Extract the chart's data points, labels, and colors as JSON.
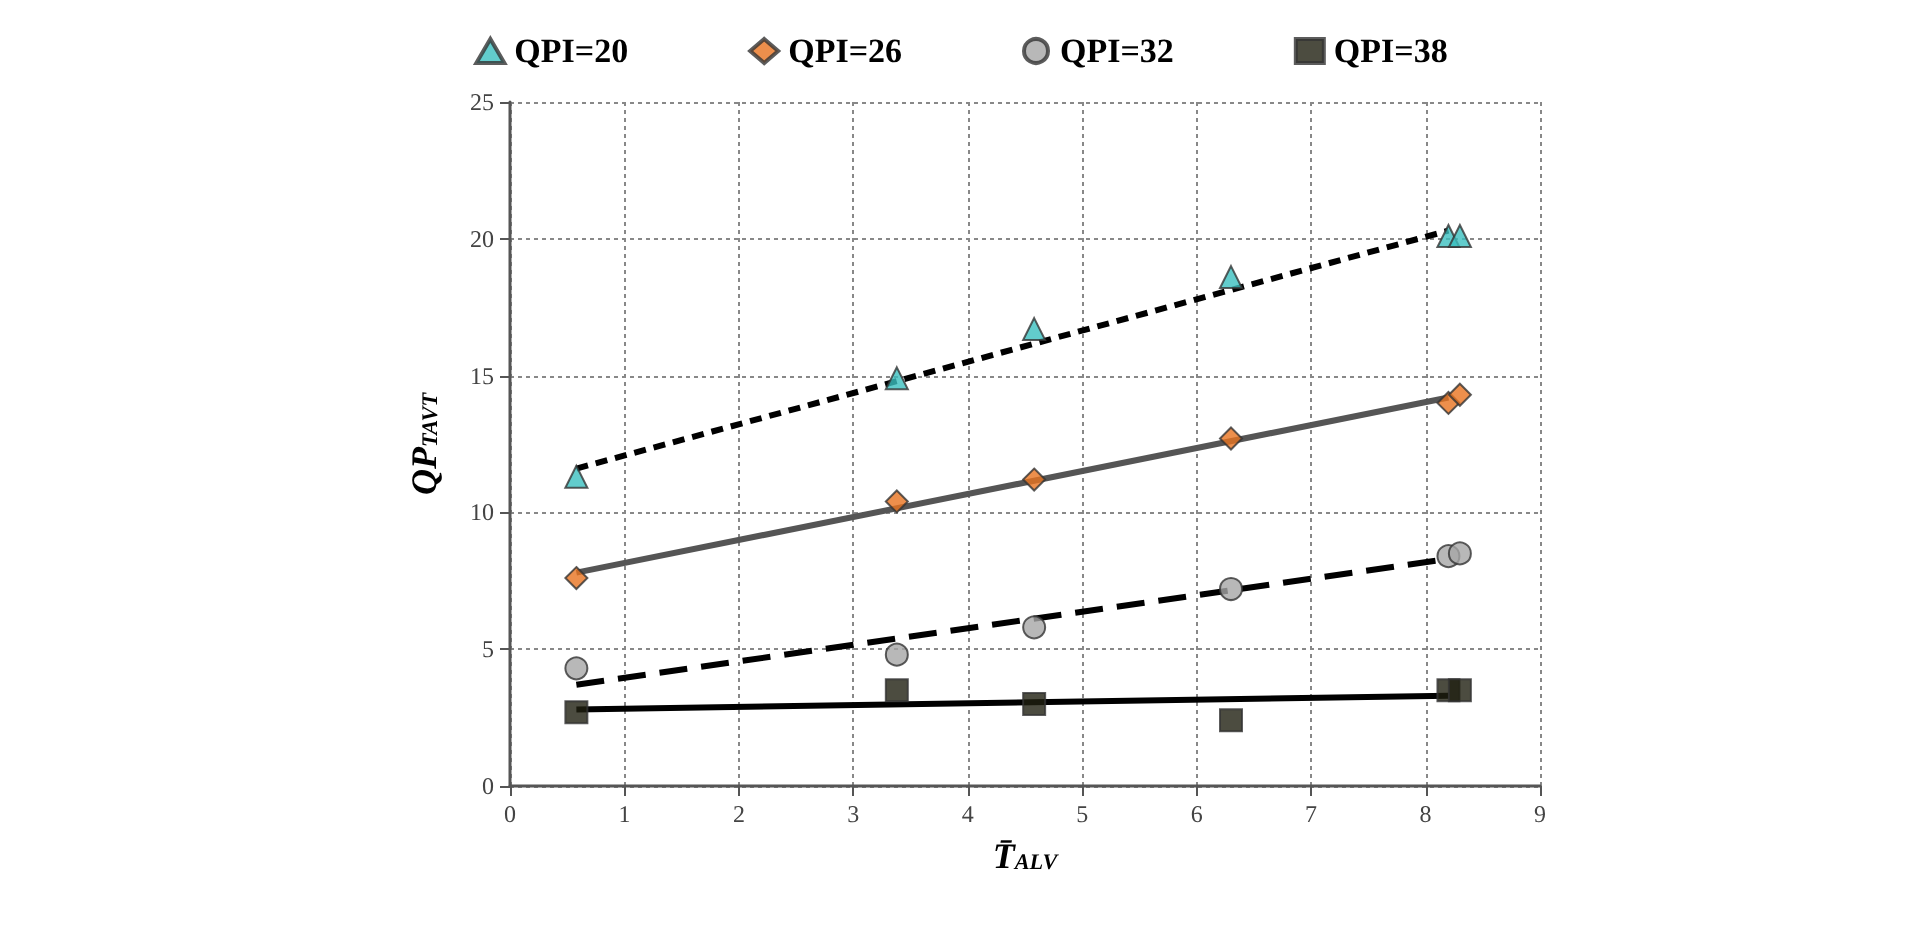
{
  "chart_data": {
    "type": "scatter",
    "xlabel": "T̄$_{ALV}$",
    "ylabel": "QP$_{TAVT}$",
    "xlim": [
      0,
      9
    ],
    "xticks": [
      0,
      1,
      2,
      3,
      4,
      5,
      6,
      7,
      8,
      9
    ],
    "ylim": [
      0,
      25
    ],
    "yticks": [
      0,
      5,
      10,
      15,
      20,
      25
    ],
    "grid": true,
    "legend": "top",
    "series": [
      {
        "name": "QPI=20",
        "type": "scatter",
        "marker": "triangle",
        "color": "#3bbfbf",
        "x": [
          0.58,
          3.38,
          4.58,
          6.3,
          8.2,
          8.3
        ],
        "values": [
          11.3,
          14.9,
          16.7,
          18.6,
          20.1,
          20.1
        ]
      },
      {
        "name": "QPI=26",
        "type": "scatter",
        "marker": "diamond",
        "color": "#e8731f",
        "x": [
          0.58,
          3.38,
          4.58,
          6.3,
          8.2,
          8.3
        ],
        "values": [
          7.6,
          10.4,
          11.2,
          12.7,
          14.0,
          14.3
        ]
      },
      {
        "name": "QPI=32",
        "type": "scatter",
        "marker": "circle",
        "color": "#a6a6a6",
        "x": [
          0.58,
          3.38,
          4.58,
          6.3,
          8.2,
          8.3
        ],
        "values": [
          4.3,
          4.8,
          5.8,
          7.2,
          8.4,
          8.5
        ]
      },
      {
        "name": "QPI=38",
        "type": "scatter",
        "marker": "square",
        "color": "#1f1f10",
        "x": [
          0.58,
          3.38,
          4.58,
          6.3,
          8.2,
          8.3
        ],
        "values": [
          2.7,
          3.5,
          3.0,
          2.4,
          3.5,
          3.5
        ]
      },
      {
        "type": "line",
        "line_style": "dotted",
        "color": "#000000",
        "x": [
          0.58,
          8.2
        ],
        "values": [
          11.6,
          20.3
        ]
      },
      {
        "type": "line",
        "line_style": "solid",
        "color": "#555555",
        "x": [
          0.58,
          8.2
        ],
        "values": [
          7.8,
          14.2
        ]
      },
      {
        "type": "line",
        "line_style": "dashed",
        "color": "#000000",
        "x": [
          0.58,
          8.2
        ],
        "values": [
          3.7,
          8.3
        ]
      },
      {
        "type": "line",
        "line_style": "solid",
        "color": "#000000",
        "x": [
          0.58,
          8.2
        ],
        "values": [
          2.8,
          3.3
        ]
      }
    ]
  }
}
